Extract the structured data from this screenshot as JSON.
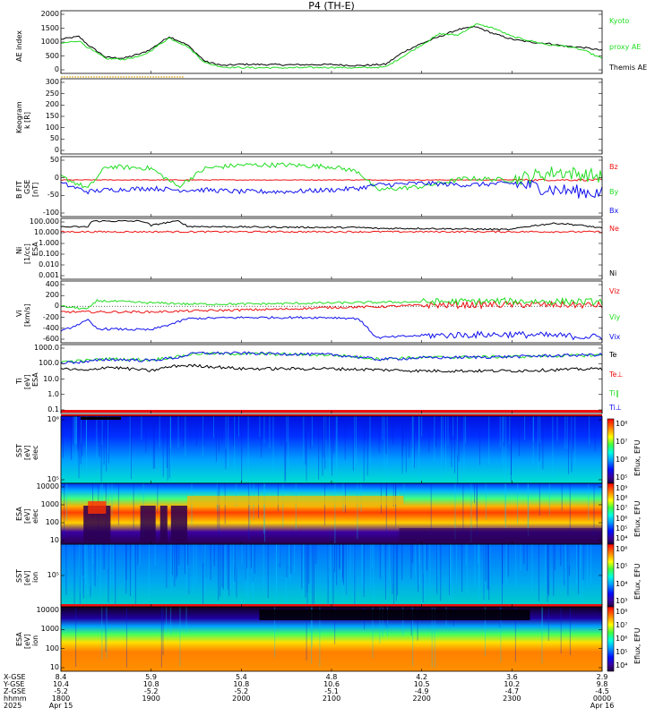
{
  "title": "P4  (TH-E)",
  "colors": {
    "green": "#22dd22",
    "black": "#000000",
    "red": "#ee1111",
    "blue": "#1111ee",
    "orange": "#ee9900"
  },
  "panels": [
    {
      "id": "ae",
      "ylabel": "AE index",
      "ticks": [
        "2000",
        "1500",
        "1000",
        "500",
        "0"
      ],
      "legend": [
        {
          "text": "Kyoto",
          "color": "green"
        },
        {
          "text": "proxy AE",
          "color": "green"
        },
        {
          "text": "Themis AE",
          "color": "black"
        }
      ]
    },
    {
      "id": "kyoto",
      "ylabel": "Keogram",
      "ylabel2": "k [R]",
      "ticks": [
        "300",
        "250",
        "200",
        "150",
        "100",
        "50",
        "0"
      ],
      "legend": []
    },
    {
      "id": "bfgl",
      "ylabel": "B FIT",
      "ylabel2": "GSE",
      "ylabel3": "[nT]",
      "ticks": [
        "50",
        "0",
        "-50",
        "-100"
      ],
      "legend": [
        {
          "text": "Bz",
          "color": "red"
        },
        {
          "text": "By",
          "color": "green"
        },
        {
          "text": "Bx",
          "color": "blue"
        }
      ]
    },
    {
      "id": "ni",
      "ylabel": "Ni",
      "ylabel2": "[1/cc]",
      "ylabel3": "ESA",
      "ticks": [
        "100.000",
        "10.000",
        "1.000",
        "0.100",
        "0.010",
        "0.001"
      ],
      "legend": [
        {
          "text": "Ne",
          "color": "red"
        },
        {
          "text": "Ni",
          "color": "black"
        }
      ]
    },
    {
      "id": "vi",
      "ylabel": "Vi",
      "ylabel2": "[km/s]",
      "ticks": [
        "400",
        "200",
        "0",
        "-200",
        "-400",
        "-600"
      ],
      "legend": [
        {
          "text": "Viz",
          "color": "red"
        },
        {
          "text": "Viy",
          "color": "green"
        },
        {
          "text": "Vix",
          "color": "blue"
        }
      ]
    },
    {
      "id": "ti",
      "ylabel": "Ti",
      "ylabel2": "[eV]",
      "ylabel3": "ESA",
      "ticks": [
        "1000.0",
        "100.0",
        "10.0",
        "1.0",
        "0.1"
      ],
      "legend": [
        {
          "text": "Te",
          "color": "black"
        },
        {
          "text": "Te⊥",
          "color": "red"
        },
        {
          "text": "Ti‖",
          "color": "green"
        },
        {
          "text": "Ti⊥",
          "color": "blue"
        }
      ]
    },
    {
      "id": "sst_e",
      "ylabel": "SST",
      "ylabel2": "[eV]",
      "ylabel3": "elec",
      "ticks": [
        "10⁶",
        "10⁵"
      ],
      "legend": []
    },
    {
      "id": "esa_e",
      "ylabel": "ESA",
      "ylabel2": "[eV]",
      "ylabel3": "elec",
      "ticks": [
        "10000",
        "1000",
        "100",
        "10"
      ],
      "legend": []
    },
    {
      "id": "sst_i",
      "ylabel": "SST",
      "ylabel2": "[eV]",
      "ylabel3": "ion",
      "ticks": [
        "10⁵"
      ],
      "legend": []
    },
    {
      "id": "esa_i",
      "ylabel": "ESA",
      "ylabel2": "[eV]",
      "ylabel3": "ion",
      "ticks": [
        "10000",
        "1000",
        "100",
        "10"
      ],
      "legend": []
    }
  ],
  "colorbars": [
    {
      "label": "Eflux, EFU",
      "ticks": [
        "10⁸",
        "10⁷",
        "10⁶",
        "10⁵"
      ]
    },
    {
      "label": "Eflux, EFU",
      "ticks": [
        "10⁹",
        "10⁸",
        "10⁷",
        "10⁶",
        "10⁵",
        "10⁴"
      ]
    },
    {
      "label": "Eflux, EFU",
      "ticks": [
        "10⁶",
        "10⁵",
        "10⁴",
        "10³"
      ]
    },
    {
      "label": "Eflux, EFU",
      "ticks": [
        "10⁸",
        "10⁷",
        "10⁶",
        "10⁵",
        "10⁴"
      ]
    }
  ],
  "axis": {
    "row_labels": [
      "X-GSE",
      "Y-GSE",
      "Z-GSE",
      "hhmm",
      "2025"
    ],
    "columns": [
      {
        "x": "8.4",
        "y": "10.4",
        "z": "-5.2",
        "t": "1800",
        "d": "Apr 15"
      },
      {
        "x": "5.9",
        "y": "10.8",
        "z": "-5.2",
        "t": "1900",
        "d": ""
      },
      {
        "x": "5.4",
        "y": "10.8",
        "z": "-5.2",
        "t": "2000",
        "d": ""
      },
      {
        "x": "4.8",
        "y": "10.6",
        "z": "-5.1",
        "t": "2100",
        "d": ""
      },
      {
        "x": "4.2",
        "y": "10.5",
        "z": "-4.9",
        "t": "2200",
        "d": ""
      },
      {
        "x": "3.6",
        "y": "10.2",
        "z": "-4.7",
        "t": "2300",
        "d": ""
      },
      {
        "x": "2.9",
        "y": "9.8",
        "z": "-4.5",
        "t": "0000",
        "d": "Apr 16"
      }
    ]
  },
  "chart_data": {
    "type": "line",
    "title": "P4  (TH-E)",
    "x_hours": [
      18,
      19,
      20,
      21,
      22,
      23,
      24
    ],
    "x_ticks": [
      "1800",
      "1900",
      "2000",
      "2100",
      "2200",
      "2300",
      "0000"
    ],
    "ae_index": {
      "ylim": [
        0,
        2000
      ],
      "series": [
        {
          "name": "Themis AE",
          "color": "black",
          "t": [
            18.0,
            18.2,
            18.3,
            18.5,
            18.7,
            18.9,
            19.0,
            19.2,
            19.4,
            19.6,
            19.8,
            20.0,
            20.5,
            21.0,
            21.3,
            21.6,
            21.8,
            22.0,
            22.2,
            22.4,
            22.6,
            22.8,
            23.0,
            23.2,
            23.4,
            23.6,
            23.8,
            24.0
          ],
          "v": [
            1100,
            1200,
            900,
            450,
            420,
            600,
            750,
            1200,
            900,
            300,
            150,
            200,
            180,
            190,
            150,
            200,
            650,
            950,
            1200,
            1450,
            1550,
            1300,
            1100,
            1000,
            950,
            850,
            800,
            700
          ]
        },
        {
          "name": "Kyoto proxy AE",
          "color": "green",
          "t": [
            18.0,
            18.2,
            18.3,
            18.5,
            18.7,
            18.9,
            19.0,
            19.2,
            19.4,
            19.6,
            19.8,
            20.0,
            20.5,
            21.0,
            21.3,
            21.6,
            21.8,
            22.0,
            22.2,
            22.4,
            22.6,
            22.8,
            23.0,
            23.2,
            23.4,
            23.6,
            23.8,
            24.0
          ],
          "v": [
            950,
            1050,
            800,
            400,
            380,
            500,
            700,
            1150,
            850,
            250,
            100,
            80,
            70,
            90,
            70,
            100,
            500,
            900,
            1300,
            1250,
            1650,
            1500,
            1200,
            1050,
            900,
            850,
            700,
            400
          ]
        }
      ]
    },
    "b_field": {
      "ylim": [
        -100,
        80
      ],
      "series": [
        {
          "name": "Bz",
          "color": "red",
          "t": [
            18,
            24
          ],
          "v": [
            10,
            10
          ]
        },
        {
          "name": "By",
          "color": "green",
          "t": [
            18.0,
            18.3,
            18.5,
            19.0,
            19.3,
            19.6,
            20.0,
            20.5,
            21.0,
            21.3,
            21.5,
            22.0,
            22.5,
            23.0,
            23.5,
            24.0
          ],
          "v": [
            20,
            -15,
            50,
            45,
            -10,
            45,
            55,
            55,
            50,
            35,
            -20,
            -10,
            15,
            10,
            35,
            20
          ]
        },
        {
          "name": "Bx",
          "color": "blue",
          "t": [
            18.0,
            18.3,
            18.5,
            19.0,
            19.3,
            19.6,
            20.0,
            20.5,
            21.0,
            21.3,
            21.5,
            22.0,
            22.5,
            23.0,
            23.5,
            24.0
          ],
          "v": [
            0,
            -25,
            -20,
            -15,
            -20,
            -20,
            -25,
            -25,
            -20,
            -15,
            -5,
            0,
            -5,
            0,
            -20,
            -30
          ]
        }
      ]
    },
    "density": {
      "ylim_log": [
        0.001,
        100
      ],
      "series": [
        {
          "name": "Ne",
          "color": "red",
          "t": [
            18,
            24
          ],
          "v": [
            8,
            8
          ]
        },
        {
          "name": "Ni",
          "color": "black",
          "t": [
            18.0,
            18.3,
            18.35,
            18.9,
            19.0,
            19.3,
            19.4,
            20.0,
            21.0,
            21.3,
            21.5,
            22.0,
            23.0,
            23.5,
            24.0
          ],
          "v": [
            20,
            20,
            60,
            60,
            25,
            60,
            22,
            20,
            18,
            18,
            15,
            15,
            12,
            40,
            15
          ]
        }
      ]
    },
    "velocity": {
      "ylim": [
        -650,
        450
      ],
      "series": [
        {
          "name": "Viz",
          "color": "red",
          "t": [
            18.0,
            19.0,
            19.5,
            20.5,
            21.0,
            21.5,
            22.0,
            23.0,
            24.0
          ],
          "v": [
            -100,
            -100,
            -80,
            -50,
            -20,
            -10,
            20,
            30,
            20
          ]
        },
        {
          "name": "Viy",
          "color": "green",
          "t": [
            18.0,
            18.3,
            18.4,
            19.0,
            19.3,
            19.4,
            20.0,
            21.0,
            22.0,
            23.0,
            24.0
          ],
          "v": [
            0,
            -50,
            100,
            60,
            50,
            40,
            40,
            60,
            80,
            90,
            80
          ]
        },
        {
          "name": "Vix",
          "color": "blue",
          "t": [
            18.0,
            18.3,
            18.4,
            19.0,
            19.3,
            19.4,
            20.0,
            21.0,
            21.3,
            21.5,
            22.0,
            23.0,
            24.0
          ],
          "v": [
            -450,
            -250,
            -400,
            -420,
            -280,
            -220,
            -200,
            -200,
            -220,
            -560,
            -520,
            -500,
            -550
          ]
        }
      ]
    },
    "temperature": {
      "ylim_log": [
        0.1,
        1000
      ],
      "series": [
        {
          "name": "Ti‖",
          "color": "green",
          "t": [
            18,
            18.3,
            18.5,
            19.0,
            19.3,
            19.5,
            20.0,
            21.0,
            21.5,
            22.0,
            23.0,
            24.0
          ],
          "v": [
            100,
            120,
            150,
            130,
            200,
            300,
            300,
            250,
            150,
            180,
            200,
            250
          ]
        },
        {
          "name": "Ti⊥",
          "color": "blue",
          "t": [
            18,
            18.3,
            18.5,
            19.0,
            19.3,
            19.5,
            20.0,
            21.0,
            21.5,
            22.0,
            23.0,
            24.0
          ],
          "v": [
            90,
            100,
            140,
            120,
            180,
            320,
            320,
            260,
            140,
            170,
            200,
            260
          ]
        },
        {
          "name": "Te",
          "color": "black",
          "t": [
            18,
            18.3,
            18.5,
            19.0,
            19.3,
            19.5,
            20.0,
            21.0,
            21.5,
            22.0,
            23.0,
            24.0
          ],
          "v": [
            40,
            30,
            50,
            30,
            60,
            60,
            40,
            40,
            35,
            30,
            30,
            40
          ]
        }
      ]
    }
  }
}
